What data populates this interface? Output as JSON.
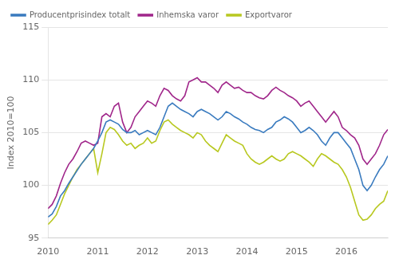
{
  "chart_data": {
    "type": "line",
    "ylabel": "Index 2010=100",
    "x": [
      2010,
      2010.0833333333333,
      2010.1666666666667,
      2010.25,
      2010.3333333333333,
      2010.4166666666667,
      2010.5,
      2010.5833333333333,
      2010.6666666666667,
      2010.75,
      2010.8333333333333,
      2010.9166666666667,
      2011,
      2011.0833333333333,
      2011.1666666666667,
      2011.25,
      2011.3333333333333,
      2011.4166666666667,
      2011.5,
      2011.5833333333333,
      2011.6666666666667,
      2011.75,
      2011.8333333333333,
      2011.9166666666667,
      2012,
      2012.0833333333333,
      2012.1666666666667,
      2012.25,
      2012.3333333333333,
      2012.4166666666667,
      2012.5,
      2012.5833333333333,
      2012.6666666666667,
      2012.75,
      2012.8333333333333,
      2012.9166666666667,
      2013,
      2013.0833333333333,
      2013.1666666666667,
      2013.25,
      2013.3333333333333,
      2013.4166666666667,
      2013.5,
      2013.5833333333333,
      2013.6666666666667,
      2013.75,
      2013.8333333333333,
      2013.9166666666667,
      2014,
      2014.0833333333333,
      2014.1666666666667,
      2014.25,
      2014.3333333333333,
      2014.4166666666667,
      2014.5,
      2014.5833333333333,
      2014.6666666666667,
      2014.75,
      2014.8333333333333,
      2014.9166666666667,
      2015,
      2015.0833333333333,
      2015.1666666666667,
      2015.25,
      2015.3333333333333,
      2015.4166666666667,
      2015.5,
      2015.5833333333333,
      2015.6666666666667,
      2015.75,
      2015.8333333333333,
      2015.9166666666667,
      2016,
      2016.0833333333333,
      2016.1666666666667,
      2016.25,
      2016.3333333333333,
      2016.4166666666667,
      2016.5,
      2016.5833333333333,
      2016.6666666666667,
      2016.75,
      2016.8333333333333
    ],
    "xlim": [
      2010,
      2016.8333333333333
    ],
    "xticks": [
      2010,
      2011,
      2012,
      2013,
      2014,
      2015,
      2016
    ],
    "ylim": [
      95,
      115
    ],
    "yticks": [
      95,
      100,
      105,
      110,
      115
    ],
    "grid": "y",
    "legend": "upper left",
    "series": [
      {
        "name": "Producentprisindex totalt",
        "color": "#3a7bbf",
        "values": [
          97.0,
          97.3,
          98.0,
          99.0,
          99.5,
          100.2,
          100.8,
          101.4,
          102.0,
          102.5,
          103.0,
          103.5,
          104.2,
          105.0,
          106.0,
          106.2,
          106.0,
          105.8,
          105.3,
          105.0,
          105.0,
          105.2,
          104.8,
          105.0,
          105.2,
          105.0,
          104.8,
          105.5,
          106.5,
          107.5,
          107.8,
          107.5,
          107.2,
          107.0,
          106.8,
          106.5,
          107.0,
          107.2,
          107.0,
          106.8,
          106.5,
          106.2,
          106.5,
          107.0,
          106.8,
          106.5,
          106.3,
          106.0,
          105.8,
          105.5,
          105.3,
          105.2,
          105.0,
          105.3,
          105.5,
          106.0,
          106.2,
          106.5,
          106.3,
          106.0,
          105.5,
          105.0,
          105.2,
          105.5,
          105.2,
          104.8,
          104.2,
          103.8,
          104.5,
          105.0,
          105.0,
          104.5,
          104.0,
          103.5,
          102.5,
          101.5,
          100.0,
          99.5,
          100.0,
          100.8,
          101.5,
          102.0,
          102.8
        ]
      },
      {
        "name": "Inhemska varor",
        "color": "#a0268a",
        "values": [
          97.8,
          98.2,
          99.0,
          100.2,
          101.2,
          102.0,
          102.5,
          103.2,
          104.0,
          104.2,
          104.0,
          103.8,
          104.0,
          106.5,
          106.8,
          106.5,
          107.5,
          107.8,
          106.0,
          105.0,
          105.5,
          106.5,
          107.0,
          107.5,
          108.0,
          107.8,
          107.5,
          108.5,
          109.2,
          109.0,
          108.5,
          108.2,
          108.0,
          108.5,
          109.8,
          110.0,
          110.2,
          109.8,
          109.8,
          109.5,
          109.2,
          108.8,
          109.5,
          109.8,
          109.5,
          109.2,
          109.3,
          109.0,
          108.8,
          108.8,
          108.5,
          108.3,
          108.2,
          108.5,
          109.0,
          109.3,
          109.0,
          108.8,
          108.5,
          108.3,
          108.0,
          107.5,
          107.8,
          108.0,
          107.5,
          107.0,
          106.5,
          106.0,
          106.5,
          107.0,
          106.5,
          105.5,
          105.2,
          104.8,
          104.5,
          103.8,
          102.5,
          102.0,
          102.5,
          103.0,
          103.8,
          104.8,
          105.3
        ]
      },
      {
        "name": "Exportvaror",
        "color": "#b8c820",
        "values": [
          96.3,
          96.7,
          97.2,
          98.2,
          99.2,
          100.0,
          100.8,
          101.5,
          102.0,
          102.5,
          103.0,
          103.5,
          101.2,
          103.0,
          105.0,
          105.5,
          105.3,
          104.8,
          104.2,
          103.8,
          104.0,
          103.5,
          103.8,
          104.0,
          104.5,
          104.0,
          104.2,
          105.2,
          106.0,
          106.2,
          105.8,
          105.5,
          105.2,
          105.0,
          104.8,
          104.5,
          105.0,
          104.8,
          104.2,
          103.8,
          103.5,
          103.2,
          104.0,
          104.8,
          104.5,
          104.2,
          104.0,
          103.8,
          103.0,
          102.5,
          102.2,
          102.0,
          102.2,
          102.5,
          102.8,
          102.5,
          102.3,
          102.5,
          103.0,
          103.2,
          103.0,
          102.8,
          102.5,
          102.2,
          101.8,
          102.5,
          103.0,
          102.8,
          102.5,
          102.2,
          102.0,
          101.5,
          100.8,
          99.8,
          98.5,
          97.2,
          96.7,
          96.8,
          97.2,
          97.8,
          98.2,
          98.5,
          99.5
        ]
      }
    ]
  }
}
